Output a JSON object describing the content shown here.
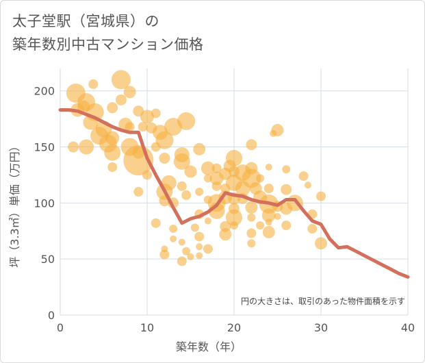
{
  "title": {
    "line1": "太子堂駅（宮城県）の",
    "line2": "築年数別中古マンション価格"
  },
  "colors": {
    "bubble": "#f5b041",
    "line": "#d2705b",
    "grid": "#d5dde6",
    "axis_text": "#555555"
  },
  "note": "円の大きさは、取引のあった物件面積を示す",
  "chart_data": {
    "type": "scatter",
    "title": "",
    "xlabel": "築年数（年）",
    "ylabel": "坪（3.3㎡）単価（万円）",
    "xlim": [
      0,
      40
    ],
    "ylim": [
      0,
      220
    ],
    "xticks": [
      0,
      10,
      20,
      30,
      40
    ],
    "yticks": [
      0,
      50,
      100,
      150,
      200
    ],
    "grid": true,
    "series": [
      {
        "kind": "bubble",
        "points": [
          {
            "x": 1.8,
            "y": 198,
            "s": 14
          },
          {
            "x": 3,
            "y": 190,
            "s": 13
          },
          {
            "x": 2,
            "y": 183,
            "s": 10
          },
          {
            "x": 4,
            "y": 181,
            "s": 13
          },
          {
            "x": 3.5,
            "y": 172,
            "s": 11
          },
          {
            "x": 5,
            "y": 166,
            "s": 12
          },
          {
            "x": 4.5,
            "y": 160,
            "s": 13
          },
          {
            "x": 5.5,
            "y": 153,
            "s": 13
          },
          {
            "x": 6,
            "y": 158,
            "s": 10
          },
          {
            "x": 7,
            "y": 210,
            "s": 14
          },
          {
            "x": 8,
            "y": 199,
            "s": 9
          },
          {
            "x": 7,
            "y": 192,
            "s": 8
          },
          {
            "x": 3.8,
            "y": 206,
            "s": 7
          },
          {
            "x": 2.7,
            "y": 186,
            "s": 9
          },
          {
            "x": 6,
            "y": 185,
            "s": 8
          },
          {
            "x": 7.5,
            "y": 170,
            "s": 10
          },
          {
            "x": 8,
            "y": 168,
            "s": 7
          },
          {
            "x": 9,
            "y": 182,
            "s": 8
          },
          {
            "x": 9.5,
            "y": 168,
            "s": 7
          },
          {
            "x": 1.5,
            "y": 150,
            "s": 8
          },
          {
            "x": 3,
            "y": 150,
            "s": 11
          },
          {
            "x": 6,
            "y": 145,
            "s": 12
          },
          {
            "x": 8,
            "y": 150,
            "s": 13
          },
          {
            "x": 9,
            "y": 145,
            "s": 9
          },
          {
            "x": 6,
            "y": 132,
            "s": 7
          },
          {
            "x": 9,
            "y": 138,
            "s": 22
          },
          {
            "x": 10,
            "y": 177,
            "s": 10
          },
          {
            "x": 10.5,
            "y": 167,
            "s": 8
          },
          {
            "x": 11,
            "y": 180,
            "s": 7
          },
          {
            "x": 11.5,
            "y": 163,
            "s": 11
          },
          {
            "x": 12,
            "y": 156,
            "s": 13
          },
          {
            "x": 13,
            "y": 168,
            "s": 13
          },
          {
            "x": 14.5,
            "y": 173,
            "s": 13
          },
          {
            "x": 11,
            "y": 150,
            "s": 7
          },
          {
            "x": 12,
            "y": 140,
            "s": 8
          },
          {
            "x": 9,
            "y": 110,
            "s": 7
          },
          {
            "x": 10,
            "y": 125,
            "s": 7
          },
          {
            "x": 14,
            "y": 143,
            "s": 11
          },
          {
            "x": 14,
            "y": 137,
            "s": 12
          },
          {
            "x": 15,
            "y": 128,
            "s": 9
          },
          {
            "x": 12.5,
            "y": 118,
            "s": 11
          },
          {
            "x": 12,
            "y": 110,
            "s": 12
          },
          {
            "x": 12,
            "y": 102,
            "s": 8
          },
          {
            "x": 14,
            "y": 115,
            "s": 7
          },
          {
            "x": 13,
            "y": 100,
            "s": 8
          },
          {
            "x": 14.5,
            "y": 107,
            "s": 7
          },
          {
            "x": 11,
            "y": 82,
            "s": 7
          },
          {
            "x": 13,
            "y": 77,
            "s": 6
          },
          {
            "x": 13,
            "y": 68,
            "s": 5
          },
          {
            "x": 12,
            "y": 59,
            "s": 5
          },
          {
            "x": 12,
            "y": 54,
            "s": 7
          },
          {
            "x": 14,
            "y": 65,
            "s": 5
          },
          {
            "x": 14.5,
            "y": 57,
            "s": 6
          },
          {
            "x": 14,
            "y": 48,
            "s": 7
          },
          {
            "x": 15,
            "y": 52,
            "s": 5
          },
          {
            "x": 16,
            "y": 61,
            "s": 5
          },
          {
            "x": 16,
            "y": 70,
            "s": 7
          },
          {
            "x": 15.5,
            "y": 78,
            "s": 6
          },
          {
            "x": 16,
            "y": 90,
            "s": 7
          },
          {
            "x": 17,
            "y": 84,
            "s": 5
          },
          {
            "x": 17,
            "y": 59,
            "s": 7
          },
          {
            "x": 16,
            "y": 53,
            "s": 5
          },
          {
            "x": 16,
            "y": 148,
            "s": 9
          },
          {
            "x": 17,
            "y": 131,
            "s": 10
          },
          {
            "x": 17,
            "y": 122,
            "s": 6
          },
          {
            "x": 18,
            "y": 131,
            "s": 7
          },
          {
            "x": 18,
            "y": 122,
            "s": 10
          },
          {
            "x": 18,
            "y": 115,
            "s": 7
          },
          {
            "x": 16,
            "y": 110,
            "s": 6
          },
          {
            "x": 17,
            "y": 103,
            "s": 6
          },
          {
            "x": 18,
            "y": 100,
            "s": 13
          },
          {
            "x": 18,
            "y": 93,
            "s": 12
          },
          {
            "x": 19,
            "y": 105,
            "s": 10
          },
          {
            "x": 19,
            "y": 113,
            "s": 7
          },
          {
            "x": 19,
            "y": 126,
            "s": 9
          },
          {
            "x": 19.5,
            "y": 133,
            "s": 9
          },
          {
            "x": 20,
            "y": 140,
            "s": 12
          },
          {
            "x": 20,
            "y": 128,
            "s": 8
          },
          {
            "x": 20,
            "y": 118,
            "s": 12
          },
          {
            "x": 21,
            "y": 127,
            "s": 12
          },
          {
            "x": 21,
            "y": 113,
            "s": 11
          },
          {
            "x": 20,
            "y": 104,
            "s": 9
          },
          {
            "x": 21,
            "y": 104,
            "s": 8
          },
          {
            "x": 20,
            "y": 95,
            "s": 8
          },
          {
            "x": 20,
            "y": 87,
            "s": 12
          },
          {
            "x": 19,
            "y": 79,
            "s": 8
          },
          {
            "x": 19,
            "y": 72,
            "s": 9
          },
          {
            "x": 20,
            "y": 80,
            "s": 6
          },
          {
            "x": 22,
            "y": 152,
            "s": 8
          },
          {
            "x": 22,
            "y": 131,
            "s": 9
          },
          {
            "x": 22,
            "y": 122,
            "s": 14
          },
          {
            "x": 22.5,
            "y": 113,
            "s": 9
          },
          {
            "x": 23,
            "y": 122,
            "s": 6
          },
          {
            "x": 23,
            "y": 105,
            "s": 10
          },
          {
            "x": 24,
            "y": 99,
            "s": 14
          },
          {
            "x": 24,
            "y": 113,
            "s": 7
          },
          {
            "x": 22,
            "y": 96,
            "s": 9
          },
          {
            "x": 22,
            "y": 87,
            "s": 6
          },
          {
            "x": 22,
            "y": 73,
            "s": 7
          },
          {
            "x": 22,
            "y": 64,
            "s": 6
          },
          {
            "x": 23,
            "y": 80,
            "s": 6
          },
          {
            "x": 24,
            "y": 89,
            "s": 10
          },
          {
            "x": 24,
            "y": 83,
            "s": 5
          },
          {
            "x": 24,
            "y": 74,
            "s": 9
          },
          {
            "x": 25,
            "y": 97,
            "s": 8
          },
          {
            "x": 25,
            "y": 88,
            "s": 5
          },
          {
            "x": 25,
            "y": 165,
            "s": 9
          },
          {
            "x": 24.5,
            "y": 162,
            "s": 5
          },
          {
            "x": 24,
            "y": 132,
            "s": 5
          },
          {
            "x": 26,
            "y": 130,
            "s": 6
          },
          {
            "x": 26,
            "y": 112,
            "s": 8
          },
          {
            "x": 27,
            "y": 100,
            "s": 12
          },
          {
            "x": 26,
            "y": 95,
            "s": 9
          },
          {
            "x": 26,
            "y": 80,
            "s": 7
          },
          {
            "x": 28,
            "y": 124,
            "s": 7
          },
          {
            "x": 28.5,
            "y": 116,
            "s": 5
          },
          {
            "x": 29,
            "y": 90,
            "s": 7
          },
          {
            "x": 30,
            "y": 106,
            "s": 7
          },
          {
            "x": 29,
            "y": 77,
            "s": 7
          },
          {
            "x": 30,
            "y": 64,
            "s": 9
          }
        ]
      },
      {
        "kind": "line",
        "x": [
          0,
          1,
          2,
          3,
          4,
          5,
          6,
          7,
          8,
          9,
          10,
          11,
          12,
          13,
          14,
          15,
          16,
          17,
          18,
          19,
          20,
          21,
          22,
          23,
          24,
          25,
          26,
          27,
          28,
          29,
          30,
          31,
          32,
          33,
          34,
          35,
          36,
          37,
          38,
          39,
          40
        ],
        "y": [
          183,
          183,
          182,
          179,
          176,
          172,
          168,
          165,
          163,
          163,
          140,
          125,
          111,
          96,
          82,
          86,
          88,
          92,
          98,
          109,
          107,
          106,
          103,
          101,
          100,
          98,
          103,
          103,
          93,
          84,
          81,
          68,
          60,
          61,
          57,
          53,
          49,
          45,
          41,
          37,
          34
        ]
      }
    ]
  }
}
